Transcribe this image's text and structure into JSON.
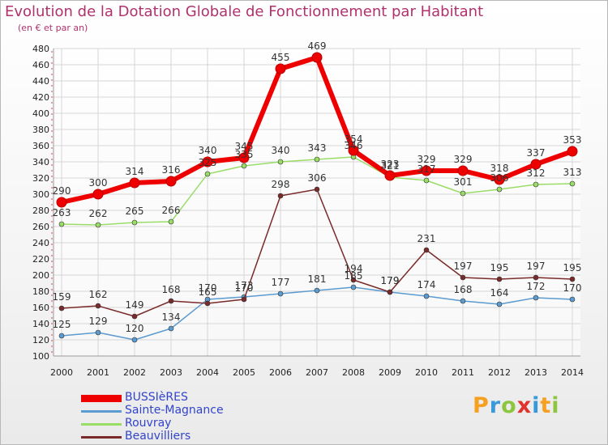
{
  "title": "Evolution de la Dotation Globale de Fonctionnement par Habitant",
  "subtitle": "(en € et par an)",
  "logo": {
    "text": "Proxiti",
    "letters": [
      {
        "ch": "P",
        "color": "#f5a020"
      },
      {
        "ch": "r",
        "color": "#3a9ad9"
      },
      {
        "ch": "o",
        "color": "#8cc63f"
      },
      {
        "ch": "x",
        "color": "#e0322d"
      },
      {
        "ch": "i",
        "color": "#3a9ad9"
      },
      {
        "ch": "t",
        "color": "#f5a020"
      },
      {
        "ch": "i",
        "color": "#8cc63f"
      }
    ]
  },
  "chart_data": {
    "type": "line",
    "title": "Evolution de la Dotation Globale de Fonctionnement par Habitant",
    "subtitle": "(en € et par an)",
    "categories": [
      "2000",
      "2001",
      "2002",
      "2003",
      "2004",
      "2005",
      "2006",
      "2007",
      "2008",
      "2009",
      "2010",
      "2011",
      "2012",
      "2013",
      "2014"
    ],
    "ylim": [
      100,
      480
    ],
    "ytick_step": 20,
    "grid": true,
    "legend_position": "bottom-left",
    "series": [
      {
        "name": "BUSSIèRES",
        "color": "#ee0000",
        "values": [
          290,
          300,
          314,
          316,
          340,
          345,
          455,
          469,
          354,
          323,
          329,
          329,
          318,
          337,
          353
        ]
      },
      {
        "name": "Sainte-Magnance",
        "color": "#5b9bd0",
        "values": [
          125,
          129,
          120,
          134,
          170,
          173,
          177,
          181,
          185,
          179,
          174,
          168,
          164,
          172,
          170
        ]
      },
      {
        "name": "Rouvray",
        "color": "#99dd66",
        "values": [
          263,
          262,
          265,
          266,
          325,
          335,
          340,
          343,
          346,
          321,
          317,
          301,
          306,
          312,
          313
        ]
      },
      {
        "name": "Beauvilliers",
        "color": "#7a2a2a",
        "values": [
          159,
          162,
          149,
          168,
          165,
          170,
          298,
          306,
          194,
          179,
          231,
          197,
          195,
          197,
          195
        ]
      }
    ],
    "data_labels": [
      {
        "series": "BUSSIèRES",
        "labels": [
          "290",
          "300",
          "314",
          "316",
          "340",
          "345",
          "455",
          "469",
          "354",
          "323",
          "329",
          "329",
          "318",
          "337",
          "353"
        ]
      },
      {
        "series": "Sainte-Magnance",
        "labels": [
          "125",
          "129",
          "120",
          "134",
          "170",
          "173",
          "177",
          "181",
          "185",
          "179",
          "174",
          "168",
          "164",
          "172",
          "170"
        ]
      },
      {
        "series": "Rouvray",
        "labels": [
          "263",
          "262",
          "265",
          "266",
          "325",
          "335",
          "340",
          "343",
          "346",
          "321",
          "317",
          "301",
          "306",
          "312",
          "313"
        ]
      },
      {
        "series": "Beauvilliers",
        "labels": [
          "159",
          "162",
          "149",
          "168",
          "165",
          "170",
          "298",
          "306",
          "194",
          "179",
          "231",
          "197",
          "195",
          "197",
          "195"
        ]
      }
    ]
  }
}
